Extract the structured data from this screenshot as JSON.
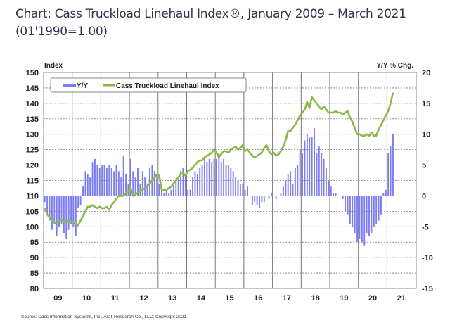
{
  "chart_data": {
    "type": "bar+line",
    "title": "Chart: Cass Truckload Linehaul Index®, January 2009 – March 2021",
    "subtitle": "(01'1990=1.00)",
    "ylabel_left": "Index",
    "ylabel_right": "Y/Y % Chg.",
    "ylim_left": [
      80,
      150
    ],
    "ylim_right": [
      -15,
      20
    ],
    "yticks_left": [
      "150",
      "145",
      "140",
      "135",
      "130",
      "125",
      "120",
      "115",
      "110",
      "105",
      "100",
      "95",
      "90",
      "85",
      "80"
    ],
    "yticks_right": [
      "20",
      "15",
      "10",
      "5",
      "0",
      "-5",
      "-10",
      "-15"
    ],
    "xticks": [
      "09",
      "10",
      "11",
      "12",
      "13",
      "14",
      "15",
      "16",
      "17",
      "18",
      "19",
      "20",
      "21"
    ],
    "start": "2009-01",
    "end": "2021-03",
    "grid": true,
    "legend_position": "top-left",
    "series": [
      {
        "name": "Y/Y",
        "type": "bar",
        "axis": "right",
        "color": "#7b7bf5",
        "values": [
          -1,
          -3,
          -4,
          -5.5,
          -4.5,
          -6.5,
          -5,
          -4.5,
          -6,
          -7,
          -5.5,
          -4.5,
          -5,
          -6.5,
          -2,
          -1.5,
          1.5,
          4,
          3.5,
          3,
          5.5,
          6,
          5,
          4.5,
          5,
          5,
          4.5,
          5,
          4.5,
          4,
          5,
          4,
          3,
          6.5,
          3.5,
          2,
          6,
          4,
          3,
          4.5,
          2,
          4,
          3,
          2,
          4.5,
          5,
          4,
          3.5,
          2,
          1.5,
          0.5,
          1,
          0.5,
          1,
          2,
          2.5,
          3,
          4,
          4.5,
          3.5,
          1,
          1,
          3,
          4,
          3.5,
          4.5,
          5,
          6,
          5.5,
          6,
          5.5,
          6,
          6,
          7,
          5.5,
          6,
          5,
          5,
          4.5,
          4,
          3,
          2.5,
          2,
          2,
          1,
          1.5,
          0,
          -1.5,
          -1,
          -1.5,
          -2,
          -1,
          -1,
          0,
          -0.5,
          0.5,
          0,
          -0.5,
          0,
          0.5,
          1.5,
          2.5,
          3.5,
          4,
          2,
          4.5,
          5,
          7.5,
          7,
          9,
          10,
          9.5,
          9.5,
          11,
          7,
          8,
          7,
          6,
          4.5,
          2.5,
          1.5,
          0.5,
          0.5,
          0,
          0,
          -0.5,
          -2.5,
          -3,
          -4.5,
          -5,
          -6,
          -7.5,
          -7,
          -7.5,
          -8,
          -6,
          -6.5,
          -6,
          -5,
          -4.5,
          -4,
          -3,
          0.5,
          1,
          7,
          8,
          10
        ]
      },
      {
        "name": "Cass Truckload Linehaul Index",
        "type": "line",
        "axis": "left",
        "color": "#8cb848",
        "values": [
          106,
          104,
          103,
          102,
          101.5,
          101,
          102,
          102.5,
          101.5,
          102,
          101.5,
          102,
          101.5,
          101,
          100.5,
          102,
          103.5,
          105,
          106.5,
          106.5,
          107,
          106.5,
          106,
          106.5,
          106,
          106,
          106.5,
          105.5,
          107,
          108,
          109,
          110,
          110,
          110,
          111,
          111.5,
          112.5,
          110,
          110.5,
          111,
          111.5,
          112,
          112.5,
          113,
          114,
          115,
          116,
          117,
          116.5,
          112,
          112,
          112,
          112.5,
          113,
          114,
          115,
          116,
          117,
          117.5,
          116.5,
          118,
          118.5,
          119,
          120,
          121,
          121.5,
          121.5,
          122.5,
          123,
          123.5,
          124,
          125,
          124,
          122.5,
          123.5,
          124.5,
          124.5,
          124,
          125,
          125.5,
          126,
          125,
          125.5,
          126.5,
          124.5,
          125,
          124,
          123,
          122.5,
          123,
          123.5,
          124,
          125.5,
          126.5,
          124.5,
          123.5,
          124,
          123,
          123.5,
          124.5,
          126,
          128,
          131,
          131,
          132,
          133,
          134.5,
          136,
          137,
          138,
          140.5,
          138.5,
          142,
          141,
          140,
          139,
          138,
          139,
          138,
          137,
          137,
          137,
          137.5,
          137,
          137,
          136.5,
          137,
          137.5,
          135.5,
          134,
          132,
          130,
          130,
          129.5,
          129.5,
          130,
          129.5,
          130.5,
          129.5,
          129.5,
          131.5,
          133,
          134.5,
          136,
          137.5,
          140,
          143.5
        ]
      }
    ],
    "source": "Source: Cass Information Systems, Inc., ACT Research Co., LLC; Copyright 2021"
  }
}
